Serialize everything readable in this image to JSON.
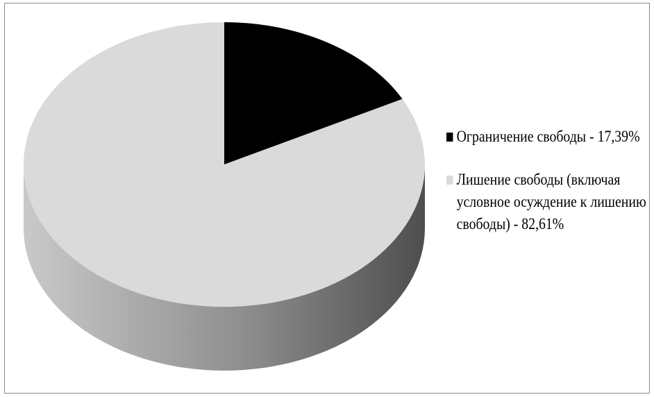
{
  "chart_data": {
    "type": "pie",
    "is_3d": true,
    "title": "",
    "slices": [
      {
        "label": "Ограничение свободы",
        "value": 17.39,
        "color": "#000000",
        "legend_text": "Ограничение свободы - 17,39%"
      },
      {
        "label": "Лишение свободы (включая условное осуждение к лишению свободы)",
        "value": 82.61,
        "color": "#dadada",
        "legend_text": "Лишение свободы (включая условное осуждение к лишению свободы) - 82,61%"
      }
    ],
    "legend_position": "right",
    "data_labels": false
  }
}
